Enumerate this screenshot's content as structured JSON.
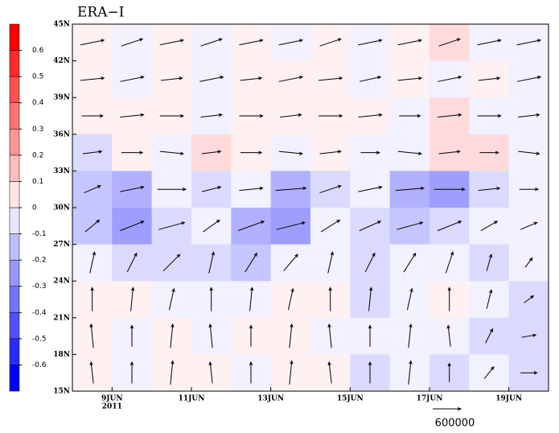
{
  "chart_data": {
    "type": "contour-vector",
    "title": "ERA−I",
    "x": [
      8.5,
      9.5,
      10.5,
      11.5,
      12.5,
      13.5,
      14.5,
      15.5,
      16.5,
      17.5,
      18.5,
      19.5
    ],
    "y": [
      43.5,
      40.5,
      37.5,
      34.5,
      31.5,
      28.5,
      25.5,
      22.5,
      19.5,
      16.5
    ],
    "xlim": [
      8,
      20
    ],
    "ylim": [
      15,
      45
    ],
    "xticks": [
      {
        "value": 9,
        "label": "9JUN"
      },
      {
        "value": 11,
        "label": "11JUN"
      },
      {
        "value": 13,
        "label": "13JUN"
      },
      {
        "value": 15,
        "label": "15JUN"
      },
      {
        "value": 17,
        "label": "17JUN"
      },
      {
        "value": 19,
        "label": "19JUN"
      }
    ],
    "x_sublabel": "2011",
    "yticks": [
      {
        "value": 15,
        "label": "15N"
      },
      {
        "value": 18,
        "label": "18N"
      },
      {
        "value": 21,
        "label": "21N"
      },
      {
        "value": 24,
        "label": "24N"
      },
      {
        "value": 27,
        "label": "27N"
      },
      {
        "value": 30,
        "label": "30N"
      },
      {
        "value": 33,
        "label": "33N"
      },
      {
        "value": 36,
        "label": "36N"
      },
      {
        "value": 39,
        "label": "39N"
      },
      {
        "value": 42,
        "label": "42N"
      },
      {
        "value": 45,
        "label": "45N"
      }
    ],
    "z": [
      [
        0.05,
        -0.05,
        0.05,
        -0.05,
        0.05,
        -0.05,
        0.05,
        -0.05,
        0.05,
        0.1,
        -0.05,
        -0.05
      ],
      [
        0.05,
        -0.05,
        0.05,
        -0.05,
        0.05,
        0.05,
        0.05,
        -0.05,
        0.05,
        -0.05,
        0.05,
        -0.05
      ],
      [
        0.05,
        0.05,
        0.05,
        -0.05,
        0.05,
        0.05,
        0.05,
        0.05,
        -0.05,
        0.15,
        -0.05,
        -0.05
      ],
      [
        -0.15,
        0.05,
        -0.05,
        0.15,
        0.05,
        -0.05,
        0.05,
        -0.05,
        -0.05,
        0.1,
        0.1,
        -0.05
      ],
      [
        -0.25,
        -0.35,
        -0.05,
        -0.15,
        -0.05,
        -0.35,
        -0.15,
        -0.05,
        -0.35,
        -0.45,
        -0.15,
        -0.05
      ],
      [
        -0.25,
        -0.45,
        -0.15,
        -0.05,
        -0.35,
        -0.45,
        -0.05,
        -0.15,
        -0.25,
        -0.15,
        -0.05,
        -0.05
      ],
      [
        -0.05,
        -0.15,
        -0.15,
        -0.15,
        -0.25,
        -0.05,
        -0.05,
        -0.15,
        -0.05,
        -0.05,
        -0.15,
        -0.05
      ],
      [
        0.05,
        0.05,
        -0.05,
        -0.05,
        -0.05,
        0.05,
        0.05,
        -0.15,
        -0.05,
        0.05,
        -0.05,
        -0.15
      ],
      [
        0.05,
        -0.05,
        0.05,
        -0.05,
        0.05,
        0.05,
        -0.05,
        -0.05,
        -0.05,
        -0.05,
        -0.15,
        -0.15
      ],
      [
        0.05,
        -0.05,
        0.05,
        0.05,
        -0.05,
        0.05,
        0.05,
        -0.15,
        -0.05,
        -0.15,
        -0.05,
        -0.15
      ]
    ],
    "u": [
      [
        500000,
        450000,
        500000,
        450000,
        500000,
        500000,
        450000,
        500000,
        500000,
        450000,
        500000,
        500000
      ],
      [
        500000,
        500000,
        450000,
        500000,
        450000,
        500000,
        500000,
        450000,
        500000,
        500000,
        450000,
        500000
      ],
      [
        450000,
        500000,
        500000,
        450000,
        500000,
        450000,
        500000,
        500000,
        450000,
        500000,
        500000,
        450000
      ],
      [
        400000,
        450000,
        500000,
        400000,
        450000,
        500000,
        450000,
        400000,
        500000,
        450000,
        400000,
        450000
      ],
      [
        350000,
        500000,
        600000,
        400000,
        500000,
        650000,
        450000,
        500000,
        600000,
        650000,
        450000,
        400000
      ],
      [
        300000,
        500000,
        550000,
        350000,
        550000,
        600000,
        400000,
        450000,
        550000,
        500000,
        350000,
        350000
      ],
      [
        100000,
        200000,
        350000,
        100000,
        250000,
        300000,
        100000,
        200000,
        250000,
        150000,
        100000,
        150000
      ],
      [
        0,
        50000,
        100000,
        0,
        50000,
        100000,
        0,
        50000,
        100000,
        0,
        100000,
        200000
      ],
      [
        -50000,
        0,
        50000,
        -50000,
        0,
        50000,
        -50000,
        0,
        50000,
        -50000,
        150000,
        300000
      ],
      [
        -50000,
        0,
        50000,
        -50000,
        0,
        50000,
        -50000,
        0,
        50000,
        0,
        200000,
        350000
      ]
    ],
    "v": [
      [
        100000,
        150000,
        100000,
        150000,
        100000,
        100000,
        150000,
        100000,
        100000,
        150000,
        100000,
        100000
      ],
      [
        50000,
        100000,
        50000,
        100000,
        50000,
        100000,
        50000,
        100000,
        50000,
        100000,
        50000,
        100000
      ],
      [
        0,
        50000,
        0,
        50000,
        0,
        50000,
        0,
        50000,
        0,
        50000,
        0,
        50000
      ],
      [
        50000,
        0,
        -50000,
        50000,
        0,
        -50000,
        50000,
        0,
        -50000,
        50000,
        0,
        -50000
      ],
      [
        150000,
        100000,
        0,
        100000,
        50000,
        50000,
        150000,
        100000,
        50000,
        0,
        50000,
        0
      ],
      [
        250000,
        200000,
        150000,
        250000,
        200000,
        150000,
        250000,
        200000,
        150000,
        200000,
        200000,
        150000
      ],
      [
        450000,
        400000,
        350000,
        450000,
        400000,
        350000,
        450000,
        400000,
        400000,
        450000,
        350000,
        200000
      ],
      [
        500000,
        500000,
        450000,
        500000,
        500000,
        450000,
        500000,
        500000,
        450000,
        500000,
        400000,
        150000
      ],
      [
        500000,
        450000,
        500000,
        500000,
        450000,
        500000,
        500000,
        450000,
        500000,
        450000,
        300000,
        50000
      ],
      [
        450000,
        450000,
        500000,
        450000,
        450000,
        500000,
        450000,
        450000,
        500000,
        400000,
        250000,
        0
      ]
    ],
    "reference_vector": 600000,
    "colorbar_lim": [
      -0.7,
      0.7
    ],
    "colorbar_ticks": [
      -0.6,
      -0.5,
      -0.4,
      -0.3,
      -0.2,
      -0.1,
      0,
      0.1,
      0.2,
      0.3,
      0.4,
      0.5,
      0.6
    ],
    "colors": [
      "#0000ff",
      "#2b2bff",
      "#5050ff",
      "#7373ff",
      "#9696ff",
      "#bdbdff",
      "#e6e6ff",
      "#ffe6e6",
      "#ffbdbd",
      "#ff9696",
      "#ff7373",
      "#ff5050",
      "#ff2b2b",
      "#ff0000"
    ]
  }
}
